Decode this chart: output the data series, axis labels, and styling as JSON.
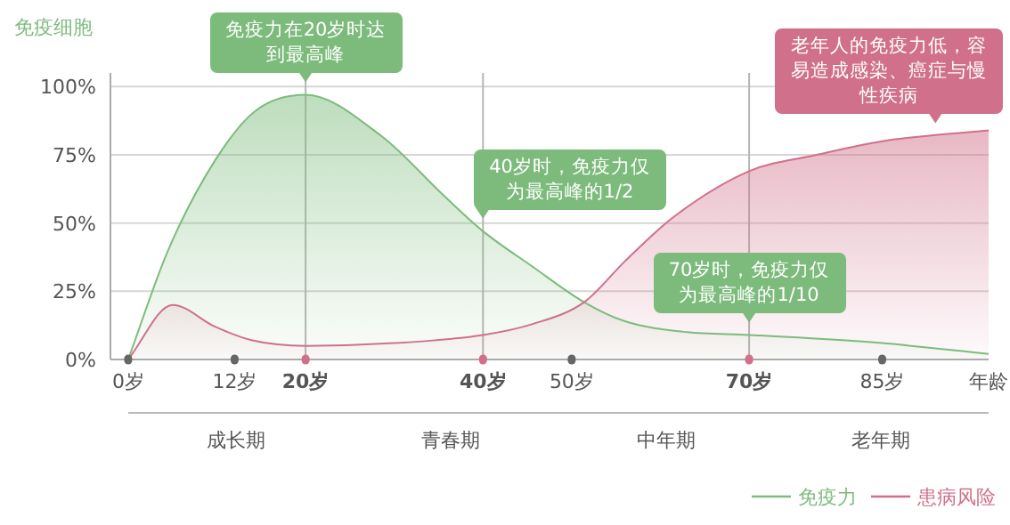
{
  "chart_data": {
    "type": "area",
    "ylabel": "免疫细胞",
    "xlabel": "年龄",
    "xlim": [
      -2,
      97
    ],
    "ylim": [
      0,
      105
    ],
    "xticks": [
      {
        "value": 0,
        "label": "0岁"
      },
      {
        "value": 12,
        "label": "12岁"
      },
      {
        "value": 20,
        "label": "20岁"
      },
      {
        "value": 40,
        "label": "40岁"
      },
      {
        "value": 50,
        "label": "50岁"
      },
      {
        "value": 70,
        "label": "70岁"
      },
      {
        "value": 85,
        "label": "85岁"
      }
    ],
    "yticks": [
      {
        "value": 0,
        "label": "0%"
      },
      {
        "value": 25,
        "label": "25%"
      },
      {
        "value": 50,
        "label": "50%"
      },
      {
        "value": 75,
        "label": "75%"
      },
      {
        "value": 100,
        "label": "100%"
      }
    ],
    "grid": "y",
    "legend": "bottom right",
    "series": [
      {
        "name": "免疫力",
        "color": "#7dbb7d",
        "x": [
          0,
          4.5,
          9.8,
          14.3,
          20,
          28.5,
          35.6,
          40,
          45.6,
          51.4,
          56,
          63,
          70,
          85,
          97
        ],
        "values": [
          0,
          40,
          73,
          91,
          97,
          82,
          60,
          47,
          34,
          21,
          14,
          10,
          9,
          6,
          2
        ]
      },
      {
        "name": "患病风险",
        "color": "#d0708a",
        "x": [
          0,
          5,
          9.8,
          14,
          20,
          30,
          40,
          45.6,
          51.4,
          56,
          61.4,
          70,
          77.6,
          85,
          97
        ],
        "values": [
          0,
          20,
          12,
          7,
          5,
          6,
          9,
          13,
          21,
          36,
          52,
          69,
          75,
          80,
          84
        ]
      }
    ],
    "ref_lines": [
      {
        "axis": "x",
        "value": 20,
        "color": "#b5b5b5"
      },
      {
        "axis": "x",
        "value": 40,
        "color": "#b5b5b5"
      },
      {
        "axis": "x",
        "value": 70,
        "color": "#b5b5b5"
      }
    ],
    "annotations": [
      "成长期",
      "青春期",
      "中年期",
      "老年期",
      {
        "text": "免疫力在20岁时达到最高峰",
        "x": 20,
        "y": 97
      },
      {
        "text": "40岁时，免疫力仅为最高峰的1/2",
        "x": 40,
        "y": 47
      },
      {
        "text": "70岁时，免疫力仅为最高峰的1/10",
        "x": 70,
        "y": 9
      },
      {
        "text": "老年人的免疫力低，容易造成感染、癌症与慢性疾病",
        "x": 91,
        "y": 82
      }
    ]
  }
}
